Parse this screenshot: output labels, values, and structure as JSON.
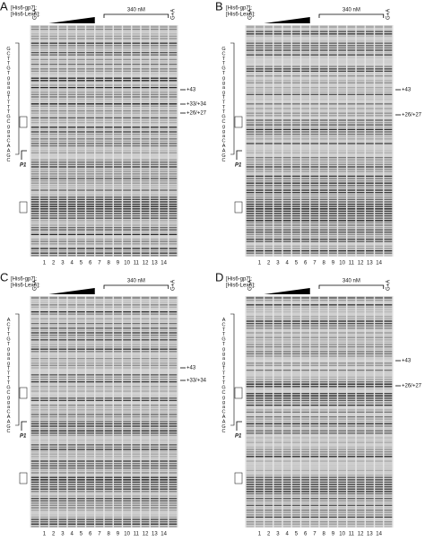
{
  "panels": [
    {
      "letter": "A",
      "header": [
        "[His6-gp7]:",
        "[His6-LexA]:"
      ],
      "lane_label": "G+A",
      "concentration": "340 nM",
      "lanes": [
        "1",
        "2",
        "3",
        "4",
        "5",
        "6",
        "7",
        "8",
        "9",
        "10",
        "11",
        "12",
        "13",
        "14"
      ],
      "annotations": [
        "+43",
        "+33/+34",
        "+26/+27"
      ],
      "sequence": "GCTTGTggagTTTTGCggaCAAGC",
      "promoter": "P1"
    },
    {
      "letter": "B",
      "header": [
        "[His6-gp7]:",
        "[His6-LexA]:"
      ],
      "lane_label": "G+A",
      "concentration": "340 nM",
      "lanes": [
        "1",
        "2",
        "3",
        "4",
        "5",
        "6",
        "7",
        "8",
        "9",
        "10",
        "11",
        "12",
        "13",
        "14"
      ],
      "annotations": [
        "+43",
        "+26/+27"
      ],
      "sequence": "GCTTGTggagTTTTGCggaCAAGC",
      "promoter": "P1"
    },
    {
      "letter": "C",
      "header": [
        "[His6-gp7]:",
        "[His6-LexA]:"
      ],
      "lane_label": "G+A",
      "concentration": "340 nM",
      "lanes": [
        "1",
        "2",
        "3",
        "4",
        "5",
        "6",
        "7",
        "8",
        "9",
        "10",
        "11",
        "12",
        "13",
        "14"
      ],
      "annotations": [
        "+43",
        "+33/+34"
      ],
      "sequence": "ACTTGTggagTTTTGCggaCAAGC",
      "promoter": "P1"
    },
    {
      "letter": "D",
      "header": [
        "[His6-gp7]:",
        "[His6-LexA]:"
      ],
      "lane_label": "G+A",
      "concentration": "340 nM",
      "lanes": [
        "1",
        "2",
        "3",
        "4",
        "5",
        "6",
        "7",
        "8",
        "9",
        "10",
        "11",
        "12",
        "13",
        "14"
      ],
      "annotations": [
        "+43",
        "+26/+27"
      ],
      "sequence": "ACTTGTggagTTTTGCggaCAAGC",
      "promoter": "P1"
    }
  ]
}
